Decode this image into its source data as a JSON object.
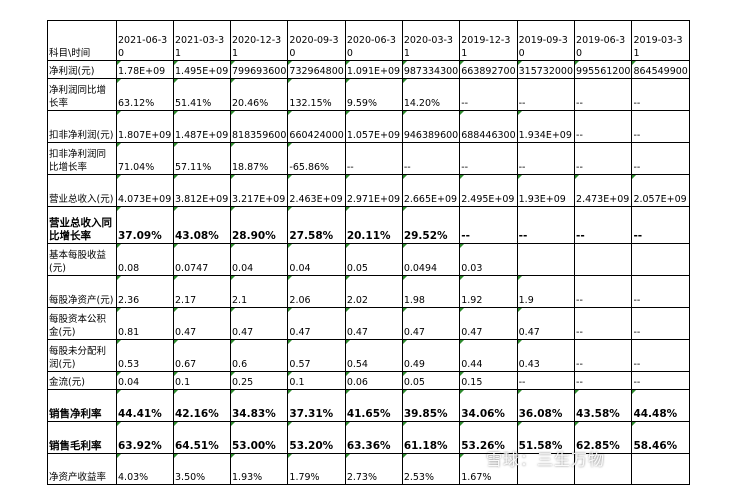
{
  "table": {
    "corner": "科目\\时间",
    "columns": [
      "2021-06-30",
      "2021-03-31",
      "2020-12-31",
      "2020-09-30",
      "2020-06-30",
      "2020-03-31",
      "2019-12-31",
      "2019-09-30",
      "2019-06-30",
      "2019-03-31"
    ],
    "rows": [
      {
        "label": "净利润(元)",
        "values": [
          "1.78E+09",
          "1.495E+09",
          "799693600",
          "732964800",
          "1.091E+09",
          "987334300",
          "663892700",
          "315732000",
          "995561200",
          "864549900"
        ],
        "bold": false
      },
      {
        "label": "净利润同比增长率",
        "values": [
          "63.12%",
          "51.41%",
          "20.46%",
          "132.15%",
          "9.59%",
          "14.20%",
          "--",
          "--",
          "--",
          "--"
        ],
        "bold": false
      },
      {
        "label": "扣非净利润(元)",
        "values": [
          "1.807E+09",
          "1.487E+09",
          "818359600",
          "660424000",
          "1.057E+09",
          "946389600",
          "688446300",
          "1.934E+09",
          "--",
          "--"
        ],
        "bold": false
      },
      {
        "label": "扣非净利润同比增长率",
        "values": [
          "71.04%",
          "57.11%",
          "18.87%",
          "-65.86%",
          "--",
          "--",
          "--",
          "--",
          "--",
          "--"
        ],
        "bold": false
      },
      {
        "label": "营业总收入(元)",
        "values": [
          "4.073E+09",
          "3.812E+09",
          "3.217E+09",
          "2.463E+09",
          "2.971E+09",
          "2.665E+09",
          "2.495E+09",
          "1.93E+09",
          "2.473E+09",
          "2.057E+09"
        ],
        "bold": false
      },
      {
        "label": "营业总收入同比增长率",
        "values": [
          "37.09%",
          "43.08%",
          "28.90%",
          "27.58%",
          "20.11%",
          "29.52%",
          "--",
          "--",
          "--",
          "--"
        ],
        "bold": true
      },
      {
        "label": "基本每股收益(元)",
        "values": [
          "0.08",
          "0.0747",
          "0.04",
          "0.04",
          "0.05",
          "0.0494",
          "0.03",
          "",
          "",
          ""
        ],
        "bold": false
      },
      {
        "label": "每股净资产(元)",
        "values": [
          "2.36",
          "2.17",
          "2.1",
          "2.06",
          "2.02",
          "1.98",
          "1.92",
          "1.9",
          "--",
          "--"
        ],
        "bold": false
      },
      {
        "label": "每股资本公积金(元)",
        "values": [
          "0.81",
          "0.47",
          "0.47",
          "0.47",
          "0.47",
          "0.47",
          "0.47",
          "0.47",
          "--",
          "--"
        ],
        "bold": false
      },
      {
        "label": "每股未分配利润(元)",
        "values": [
          "0.53",
          "0.67",
          "0.6",
          "0.57",
          "0.54",
          "0.49",
          "0.44",
          "0.43",
          "--",
          "--"
        ],
        "bold": false
      },
      {
        "label": "金流(元)",
        "values": [
          "0.04",
          "0.1",
          "0.25",
          "0.1",
          "0.06",
          "0.05",
          "0.15",
          "--",
          "--",
          "--"
        ],
        "bold": false
      },
      {
        "label": "销售净利率",
        "values": [
          "44.41%",
          "42.16%",
          "34.83%",
          "37.31%",
          "41.65%",
          "39.85%",
          "34.06%",
          "36.08%",
          "43.58%",
          "44.48%"
        ],
        "bold": true
      },
      {
        "label": "销售毛利率",
        "values": [
          "63.92%",
          "64.51%",
          "53.00%",
          "53.20%",
          "63.36%",
          "61.18%",
          "53.26%",
          "51.58%",
          "62.85%",
          "58.46%"
        ],
        "bold": true
      },
      {
        "label": "净资产收益率",
        "values": [
          "4.03%",
          "3.50%",
          "1.93%",
          "1.79%",
          "2.73%",
          "2.53%",
          "1.67%",
          "",
          "",
          ""
        ],
        "bold": false
      }
    ]
  },
  "watermark": "雪球：三生万物",
  "colors": {
    "marker": "#2e8b2e",
    "border": "#000000"
  }
}
